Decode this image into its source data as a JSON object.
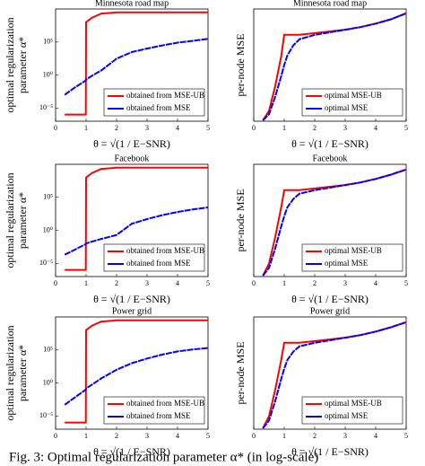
{
  "chart_data": [
    {
      "type": "line",
      "title": "Minnesota road map",
      "ylabel": [
        "optimal regularization",
        "parameter α*"
      ],
      "xlabel": "θ = √(1 / E−SNR)",
      "log": true,
      "xlim": [
        0,
        5
      ],
      "xticks": [
        0,
        1,
        2,
        3,
        4,
        5
      ],
      "ylim": [
        1e-07,
        10000000000.0
      ],
      "yticks": [
        {
          "value": 1e-05,
          "label": "10⁻⁵"
        },
        {
          "value": 1,
          "label": "10⁰"
        },
        {
          "value": 100000.0,
          "label": "10⁵"
        }
      ],
      "legend": "lower right",
      "x": [
        0.3,
        0.6,
        0.9,
        0.99,
        1.0,
        1.2,
        1.5,
        2,
        2.5,
        3,
        3.5,
        4,
        4.5,
        5
      ],
      "series": [
        {
          "name": "obtained from MSE-UB",
          "color": "#ff0000",
          "values": [
            1e-06,
            1e-06,
            1e-06,
            1e-06,
            100000000.0,
            500000000.0,
            2000000000.0,
            3000000000.0,
            3000000000.0,
            3000000000.0,
            3000000000.0,
            3000000000.0,
            3000000000.0,
            3000000000.0
          ]
        },
        {
          "name": "obtained from MSE",
          "color": "#0000ff",
          "values": [
            0.001,
            0.01,
            0.08,
            0.15,
            0.2,
            0.8,
            5,
            300,
            3000,
            10000,
            30000,
            80000,
            150000,
            300000
          ]
        }
      ]
    },
    {
      "type": "line",
      "title": "Minnesota road map",
      "ylabel": [
        "per-node MSE"
      ],
      "xlabel": "θ = √(1 / E−SNR)",
      "log": false,
      "xlim": [
        0,
        5
      ],
      "xticks": [
        0,
        1,
        2,
        3,
        4,
        5
      ],
      "ylim": [
        0,
        1.3
      ],
      "legend": "lower right",
      "x": [
        0.3,
        0.5,
        0.7,
        0.9,
        1.0,
        1.1,
        1.3,
        1.5,
        2,
        2.5,
        3,
        3.5,
        4,
        4.5,
        5
      ],
      "series": [
        {
          "name": "optimal MSE-UB",
          "color": "#ff0000",
          "values": [
            0.01,
            0.12,
            0.4,
            0.75,
            1.0,
            1.0,
            1.0,
            1.0,
            1.02,
            1.04,
            1.06,
            1.09,
            1.13,
            1.18,
            1.25
          ]
        },
        {
          "name": "optimal MSE",
          "color": "#0000ff",
          "values": [
            0.01,
            0.08,
            0.28,
            0.52,
            0.65,
            0.76,
            0.88,
            0.95,
            1.0,
            1.03,
            1.06,
            1.09,
            1.13,
            1.18,
            1.25
          ]
        }
      ]
    },
    {
      "type": "line",
      "title": "Facebook",
      "ylabel": [
        "optimal regularization",
        "parameter α*"
      ],
      "xlabel": "θ = √(1 / E−SNR)",
      "log": true,
      "xlim": [
        0,
        5
      ],
      "xticks": [
        0,
        1,
        2,
        3,
        4,
        5
      ],
      "ylim": [
        1e-07,
        10000000000.0
      ],
      "yticks": [
        {
          "value": 1e-05,
          "label": "10⁻⁵"
        },
        {
          "value": 1,
          "label": "10⁰"
        },
        {
          "value": 100000.0,
          "label": "10⁵"
        }
      ],
      "legend": "lower right",
      "x": [
        0.3,
        0.6,
        0.9,
        0.99,
        1.0,
        1.2,
        1.5,
        2,
        2.5,
        3,
        3.5,
        4,
        4.5,
        5
      ],
      "series": [
        {
          "name": "obtained from MSE-UB",
          "color": "#ff0000",
          "values": [
            1e-06,
            1e-06,
            1e-06,
            1e-06,
            100000000.0,
            500000000.0,
            2000000000.0,
            3000000000.0,
            3000000000.0,
            3000000000.0,
            3000000000.0,
            3000000000.0,
            3000000000.0,
            3000000000.0
          ]
        },
        {
          "name": "obtained from MSE",
          "color": "#0000ff",
          "values": [
            0.0002,
            0.001,
            0.005,
            0.008,
            0.01,
            0.02,
            0.05,
            0.2,
            10,
            50,
            200,
            600,
            1500,
            3000
          ]
        }
      ]
    },
    {
      "type": "line",
      "title": "Facebook",
      "ylabel": [
        "per-node MSE"
      ],
      "xlabel": "θ = √(1 / E−SNR)",
      "log": false,
      "xlim": [
        0,
        5
      ],
      "xticks": [
        0,
        1,
        2,
        3,
        4,
        5
      ],
      "ylim": [
        0,
        1.3
      ],
      "legend": "lower right",
      "x": [
        0.3,
        0.5,
        0.7,
        0.9,
        1.0,
        1.1,
        1.3,
        1.5,
        2,
        2.5,
        3,
        3.5,
        4,
        4.5,
        5
      ],
      "series": [
        {
          "name": "optimal MSE-UB",
          "color": "#ff0000",
          "values": [
            0.01,
            0.15,
            0.45,
            0.8,
            1.0,
            1.0,
            1.0,
            1.0,
            1.02,
            1.04,
            1.06,
            1.09,
            1.13,
            1.18,
            1.24
          ]
        },
        {
          "name": "optimal MSE",
          "color": "#0000ff",
          "values": [
            0.01,
            0.1,
            0.32,
            0.58,
            0.7,
            0.8,
            0.9,
            0.96,
            1.0,
            1.03,
            1.06,
            1.09,
            1.13,
            1.18,
            1.24
          ]
        }
      ]
    },
    {
      "type": "line",
      "title": "Power grid",
      "ylabel": [
        "optimal regularization",
        "parameter α*"
      ],
      "xlabel": "θ = √(1 / E−SNR)",
      "log": true,
      "xlim": [
        0,
        5
      ],
      "xticks": [
        0,
        1,
        2,
        3,
        4,
        5
      ],
      "ylim": [
        1e-07,
        10000000000.0
      ],
      "yticks": [
        {
          "value": 1e-05,
          "label": "10⁻⁵"
        },
        {
          "value": 1,
          "label": "10⁰"
        },
        {
          "value": 100000.0,
          "label": "10⁵"
        }
      ],
      "legend": "lower right",
      "x": [
        0.3,
        0.6,
        0.9,
        0.99,
        1.0,
        1.2,
        1.5,
        2,
        2.5,
        3,
        3.5,
        4,
        4.5,
        5
      ],
      "series": [
        {
          "name": "obtained from MSE-UB",
          "color": "#ff0000",
          "values": [
            1e-06,
            1e-06,
            1e-06,
            1e-06,
            100000000.0,
            500000000.0,
            2000000000.0,
            3000000000.0,
            3000000000.0,
            3000000000.0,
            3000000000.0,
            3000000000.0,
            3000000000.0,
            3000000000.0
          ]
        },
        {
          "name": "obtained from MSE",
          "color": "#0000ff",
          "values": [
            0.0005,
            0.005,
            0.05,
            0.1,
            0.15,
            0.6,
            5,
            100,
            1000,
            5000,
            20000,
            60000,
            120000,
            200000
          ]
        }
      ]
    },
    {
      "type": "line",
      "title": "Power grid",
      "ylabel": [
        "per-node MSE"
      ],
      "xlabel": "θ = √(1 / E−SNR)",
      "log": false,
      "xlim": [
        0,
        5
      ],
      "xticks": [
        0,
        1,
        2,
        3,
        4,
        5
      ],
      "ylim": [
        0,
        1.3
      ],
      "legend": "lower right",
      "x": [
        0.3,
        0.5,
        0.7,
        0.9,
        1.0,
        1.1,
        1.3,
        1.5,
        2,
        2.5,
        3,
        3.5,
        4,
        4.5,
        5
      ],
      "series": [
        {
          "name": "optimal MSE-UB",
          "color": "#ff0000",
          "values": [
            0.01,
            0.15,
            0.45,
            0.8,
            1.0,
            1.0,
            1.0,
            1.0,
            1.02,
            1.04,
            1.06,
            1.09,
            1.13,
            1.18,
            1.24
          ]
        },
        {
          "name": "optimal MSE",
          "color": "#0000ff",
          "values": [
            0.01,
            0.1,
            0.32,
            0.58,
            0.7,
            0.8,
            0.9,
            0.96,
            1.0,
            1.03,
            1.06,
            1.09,
            1.13,
            1.18,
            1.24
          ]
        }
      ]
    }
  ],
  "caption": "Fig. 3: Optimal regularization parameter α* (in log-scale)"
}
